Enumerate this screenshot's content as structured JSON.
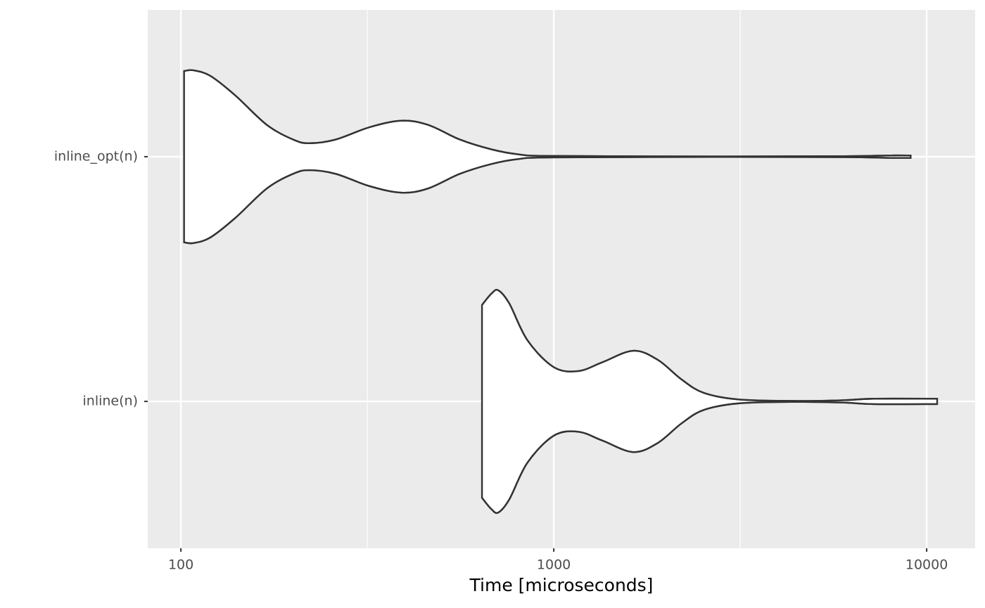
{
  "chart_data": {
    "type": "violin",
    "xlabel": "Time [microseconds]",
    "log_x": true,
    "grid": true,
    "xlim": [
      81.5,
      13490
    ],
    "xticks": [
      100,
      1000,
      10000
    ],
    "minor_xticks": [
      316.23,
      3162.3
    ],
    "categories": [
      "inline_opt(n)",
      "inline(n)"
    ],
    "fill": "#ffffff",
    "outline": "#333333",
    "violins": [
      {
        "x": [
          102,
          108,
          120,
          140,
          170,
          200,
          221,
          260,
          320,
          390,
          460,
          560,
          680,
          800,
          1000,
          3000,
          6000,
          8000,
          9060
        ],
        "half_width": [
          0.35,
          0.353,
          0.33,
          0.25,
          0.13,
          0.07,
          0.055,
          0.07,
          0.12,
          0.147,
          0.13,
          0.07,
          0.03,
          0.01,
          0.003,
          0.001,
          0.002,
          0.005,
          0.005
        ]
      },
      {
        "x": [
          642,
          680,
          710,
          760,
          850,
          1000,
          1164,
          1350,
          1633,
          1900,
          2200,
          2524,
          3133,
          4500,
          6000,
          7200,
          10670
        ],
        "half_width": [
          0.394,
          0.44,
          0.454,
          0.4,
          0.25,
          0.14,
          0.124,
          0.16,
          0.207,
          0.17,
          0.09,
          0.035,
          0.008,
          0.002,
          0.005,
          0.011,
          0.011
        ]
      }
    ]
  }
}
